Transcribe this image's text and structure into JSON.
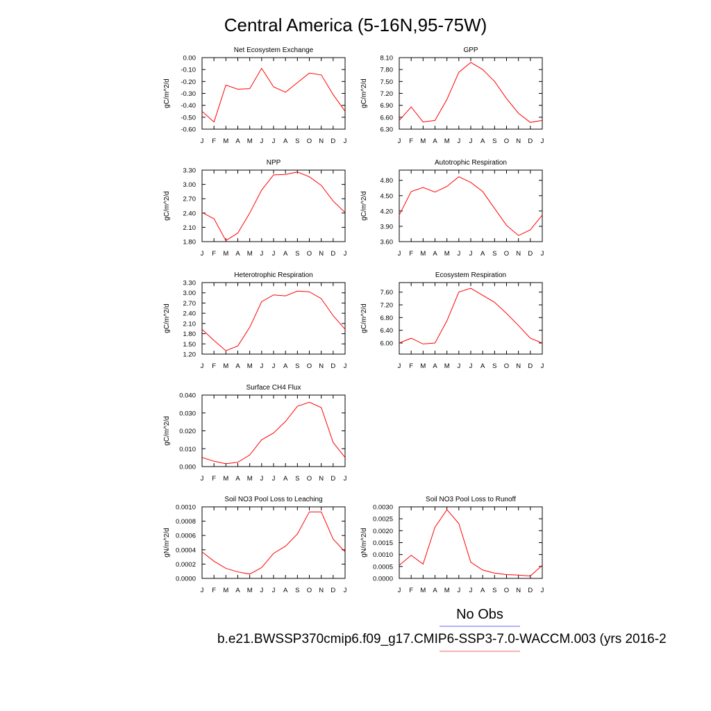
{
  "figure": {
    "title": "Central America (5-16N,95-75W)",
    "legend": {
      "obs_label": "No Obs",
      "obs_color": "#6666ee",
      "model_color": "#ee6666"
    },
    "footer": "b.e21.BWSSP370cmip6.f09_g17.CMIP6-SSP3-7.0-WACCM.003 (yrs 2016-2"
  },
  "chart_data": [
    {
      "type": "line",
      "title": "Net Ecosystem Exchange",
      "ylabel": "gC/m^2/d",
      "x": [
        "J",
        "F",
        "M",
        "A",
        "M",
        "J",
        "J",
        "A",
        "S",
        "O",
        "N",
        "D",
        "J"
      ],
      "ylim": [
        -0.6,
        0.0
      ],
      "yticks": [
        "0.00",
        "-0.10",
        "-0.20",
        "-0.30",
        "-0.40",
        "-0.50",
        "-0.60"
      ],
      "series": [
        {
          "color": "#ff0000",
          "values": [
            -0.45,
            -0.54,
            -0.23,
            -0.265,
            -0.26,
            -0.09,
            -0.245,
            -0.29,
            -0.21,
            -0.13,
            -0.145,
            -0.31,
            -0.45
          ]
        }
      ]
    },
    {
      "type": "line",
      "title": "GPP",
      "ylabel": "gC/m^2/d",
      "x": [
        "J",
        "F",
        "M",
        "A",
        "M",
        "J",
        "J",
        "A",
        "S",
        "O",
        "N",
        "D",
        "J"
      ],
      "ylim": [
        6.3,
        8.1
      ],
      "yticks": [
        "8.10",
        "7.80",
        "7.50",
        "7.20",
        "6.90",
        "6.60",
        "6.30"
      ],
      "series": [
        {
          "color": "#ff0000",
          "values": [
            6.52,
            6.86,
            6.48,
            6.52,
            7.05,
            7.73,
            7.98,
            7.8,
            7.5,
            7.07,
            6.7,
            6.47,
            6.52
          ]
        }
      ]
    },
    {
      "type": "line",
      "title": "NPP",
      "ylabel": "gC/m^2/d",
      "x": [
        "J",
        "F",
        "M",
        "A",
        "M",
        "J",
        "J",
        "A",
        "S",
        "O",
        "N",
        "D",
        "J"
      ],
      "ylim": [
        1.8,
        3.3
      ],
      "yticks": [
        "3.30",
        "3.00",
        "2.70",
        "2.40",
        "2.10",
        "1.80"
      ],
      "series": [
        {
          "color": "#ff0000",
          "values": [
            2.41,
            2.28,
            1.82,
            1.98,
            2.4,
            2.88,
            3.2,
            3.21,
            3.26,
            3.16,
            2.98,
            2.65,
            2.41
          ]
        }
      ]
    },
    {
      "type": "line",
      "title": "Autotrophic Respiration",
      "ylabel": "gC/m^2/d",
      "x": [
        "J",
        "F",
        "M",
        "A",
        "M",
        "J",
        "J",
        "A",
        "S",
        "O",
        "N",
        "D",
        "J"
      ],
      "ylim": [
        3.6,
        5.0
      ],
      "yticks": [
        "4.80",
        "4.50",
        "4.20",
        "3.90",
        "3.60"
      ],
      "series": [
        {
          "color": "#ff0000",
          "values": [
            4.12,
            4.58,
            4.66,
            4.57,
            4.68,
            4.87,
            4.76,
            4.58,
            4.25,
            3.92,
            3.72,
            3.83,
            4.12
          ]
        }
      ]
    },
    {
      "type": "line",
      "title": "Heterotrophic Respiration",
      "ylabel": "gC/m^2/d",
      "x": [
        "J",
        "F",
        "M",
        "A",
        "M",
        "J",
        "J",
        "A",
        "S",
        "O",
        "N",
        "D",
        "J"
      ],
      "ylim": [
        1.2,
        3.3
      ],
      "yticks": [
        "3.30",
        "3.00",
        "2.70",
        "2.40",
        "2.10",
        "1.80",
        "1.50",
        "1.20"
      ],
      "series": [
        {
          "color": "#ff0000",
          "values": [
            1.93,
            1.6,
            1.3,
            1.44,
            1.99,
            2.74,
            2.94,
            2.91,
            3.05,
            3.03,
            2.83,
            2.33,
            1.93
          ]
        }
      ]
    },
    {
      "type": "line",
      "title": "Ecosystem Respiration",
      "ylabel": "gC/m^2/d",
      "x": [
        "J",
        "F",
        "M",
        "A",
        "M",
        "J",
        "J",
        "A",
        "S",
        "O",
        "N",
        "D",
        "J"
      ],
      "ylim": [
        5.65,
        7.9
      ],
      "yticks": [
        "7.60",
        "7.20",
        "6.80",
        "6.40",
        "6.00"
      ],
      "series": [
        {
          "color": "#ff0000",
          "values": [
            6.0,
            6.15,
            5.97,
            6.0,
            6.7,
            7.6,
            7.72,
            7.5,
            7.28,
            6.93,
            6.55,
            6.15,
            6.0
          ]
        }
      ]
    },
    {
      "type": "line",
      "title": "Surface CH4 Flux",
      "ylabel": "gC/m^2/d",
      "x": [
        "J",
        "F",
        "M",
        "A",
        "M",
        "J",
        "J",
        "A",
        "S",
        "O",
        "N",
        "D",
        "J"
      ],
      "ylim": [
        0.0,
        0.04
      ],
      "yticks": [
        "0.040",
        "0.030",
        "0.020",
        "0.010",
        "0.000"
      ],
      "series": [
        {
          "color": "#ff0000",
          "values": [
            0.0051,
            0.003,
            0.0016,
            0.0024,
            0.0065,
            0.015,
            0.0188,
            0.0253,
            0.0337,
            0.036,
            0.033,
            0.0135,
            0.0051
          ]
        }
      ]
    },
    {
      "type": "line",
      "title": "Soil NO3 Pool Loss to Leaching",
      "ylabel": "gN/m^2/d",
      "x": [
        "J",
        "F",
        "M",
        "A",
        "M",
        "J",
        "J",
        "A",
        "S",
        "O",
        "N",
        "D",
        "J"
      ],
      "ylim": [
        0.0,
        0.001
      ],
      "yticks": [
        "0.0010",
        "0.0008",
        "0.0006",
        "0.0004",
        "0.0002",
        "0.0000"
      ],
      "series": [
        {
          "color": "#ff0000",
          "values": [
            0.00037,
            0.00024,
            0.00014,
            9e-05,
            6e-05,
            0.00015,
            0.00035,
            0.00045,
            0.00062,
            0.00093,
            0.00093,
            0.00055,
            0.00037
          ]
        }
      ]
    },
    {
      "type": "line",
      "title": "Soil NO3 Pool Loss to Runoff",
      "ylabel": "gN/m^2/d",
      "x": [
        "J",
        "F",
        "M",
        "A",
        "M",
        "J",
        "J",
        "A",
        "S",
        "O",
        "N",
        "D",
        "J"
      ],
      "ylim": [
        0.0,
        0.003
      ],
      "yticks": [
        "0.0030",
        "0.0025",
        "0.0020",
        "0.0015",
        "0.0010",
        "0.0005",
        "0.0000"
      ],
      "series": [
        {
          "color": "#ff0000",
          "values": [
            0.00055,
            0.00097,
            0.0006,
            0.00215,
            0.00288,
            0.0023,
            0.00068,
            0.00035,
            0.00022,
            0.00016,
            0.00014,
            0.0001,
            0.00055
          ]
        }
      ]
    }
  ]
}
